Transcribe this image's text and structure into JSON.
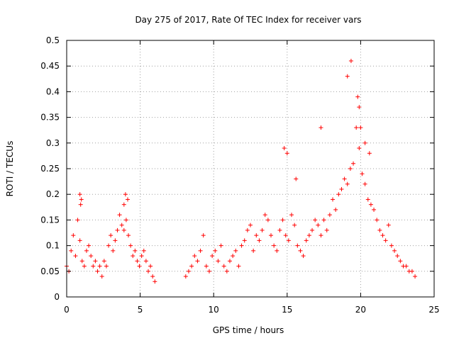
{
  "chart_data": {
    "type": "scatter",
    "title": "Day 275 of 2017, Rate Of TEC Index for receiver vars",
    "xlabel": "GPS time / hours",
    "ylabel": "ROTI / TECUs",
    "xlim": [
      0,
      25
    ],
    "ylim": [
      0,
      0.5
    ],
    "xticks": [
      0,
      5,
      10,
      15,
      20,
      25
    ],
    "xtick_labels": [
      "0",
      "5",
      "10",
      "15",
      "20",
      "25"
    ],
    "yticks": [
      0,
      0.05,
      0.1,
      0.15,
      0.2,
      0.25,
      0.3,
      0.35,
      0.4,
      0.45,
      0.5
    ],
    "ytick_labels": [
      "0",
      "0.05",
      "0.1",
      "0.15",
      "0.2",
      "0.25",
      "0.3",
      "0.35",
      "0.4",
      "0.45",
      "0.5"
    ],
    "grid": true,
    "marker": "+",
    "color": "#ff0000",
    "series": [
      {
        "name": "",
        "x": [
          0.0,
          0.15,
          0.3,
          0.45,
          0.6,
          0.75,
          0.9,
          1.05,
          1.2,
          1.35,
          1.5,
          1.65,
          1.8,
          1.95,
          2.1,
          2.25,
          2.4,
          2.55,
          2.7,
          2.85,
          3.0,
          3.15,
          3.3,
          3.45,
          3.6,
          3.75,
          3.9,
          4.05,
          4.2,
          4.35,
          4.5,
          4.65,
          4.8,
          4.95,
          5.1,
          5.25,
          5.4,
          5.55,
          5.7,
          5.85,
          6.0,
          0.9,
          0.95,
          1.0,
          3.9,
          4.0,
          4.15,
          8.1,
          8.3,
          8.5,
          8.7,
          8.9,
          9.1,
          9.3,
          9.5,
          9.7,
          9.9,
          10.1,
          10.3,
          10.5,
          10.7,
          10.9,
          11.1,
          11.3,
          11.5,
          11.7,
          11.9,
          12.1,
          12.3,
          12.5,
          12.7,
          12.9,
          13.1,
          13.3,
          13.5,
          13.7,
          13.9,
          14.1,
          14.3,
          14.5,
          14.7,
          14.9,
          15.1,
          15.3,
          15.5,
          15.7,
          15.9,
          16.1,
          16.3,
          16.5,
          16.7,
          16.9,
          17.1,
          17.3,
          17.5,
          17.7,
          17.9,
          18.1,
          18.3,
          18.5,
          18.7,
          18.9,
          19.1,
          19.3,
          19.5,
          19.7,
          19.9,
          20.1,
          20.3,
          20.5,
          20.7,
          20.9,
          21.1,
          21.3,
          21.5,
          21.7,
          21.9,
          22.1,
          22.3,
          22.5,
          22.7,
          22.9,
          23.1,
          23.3,
          23.5,
          23.7,
          14.8,
          15.0,
          15.6,
          17.3,
          19.1,
          19.35,
          19.8,
          19.9,
          20.0,
          20.3,
          20.6
        ],
        "y": [
          0.06,
          0.05,
          0.09,
          0.12,
          0.08,
          0.15,
          0.11,
          0.07,
          0.06,
          0.09,
          0.1,
          0.08,
          0.06,
          0.07,
          0.05,
          0.06,
          0.04,
          0.07,
          0.06,
          0.1,
          0.12,
          0.09,
          0.11,
          0.13,
          0.16,
          0.14,
          0.13,
          0.15,
          0.12,
          0.1,
          0.08,
          0.09,
          0.07,
          0.06,
          0.08,
          0.09,
          0.07,
          0.05,
          0.06,
          0.04,
          0.03,
          0.2,
          0.18,
          0.19,
          0.18,
          0.2,
          0.19,
          0.04,
          0.05,
          0.06,
          0.08,
          0.07,
          0.09,
          0.12,
          0.06,
          0.05,
          0.08,
          0.09,
          0.07,
          0.1,
          0.06,
          0.05,
          0.07,
          0.08,
          0.09,
          0.06,
          0.1,
          0.11,
          0.13,
          0.14,
          0.09,
          0.12,
          0.11,
          0.13,
          0.16,
          0.15,
          0.12,
          0.1,
          0.09,
          0.13,
          0.15,
          0.12,
          0.11,
          0.16,
          0.14,
          0.1,
          0.09,
          0.08,
          0.11,
          0.12,
          0.13,
          0.15,
          0.14,
          0.12,
          0.15,
          0.13,
          0.16,
          0.19,
          0.17,
          0.2,
          0.21,
          0.23,
          0.22,
          0.25,
          0.26,
          0.33,
          0.29,
          0.24,
          0.22,
          0.19,
          0.18,
          0.17,
          0.15,
          0.13,
          0.12,
          0.11,
          0.14,
          0.1,
          0.09,
          0.08,
          0.07,
          0.06,
          0.06,
          0.05,
          0.05,
          0.04,
          0.29,
          0.28,
          0.23,
          0.33,
          0.43,
          0.46,
          0.39,
          0.37,
          0.33,
          0.3,
          0.28
        ]
      }
    ]
  }
}
